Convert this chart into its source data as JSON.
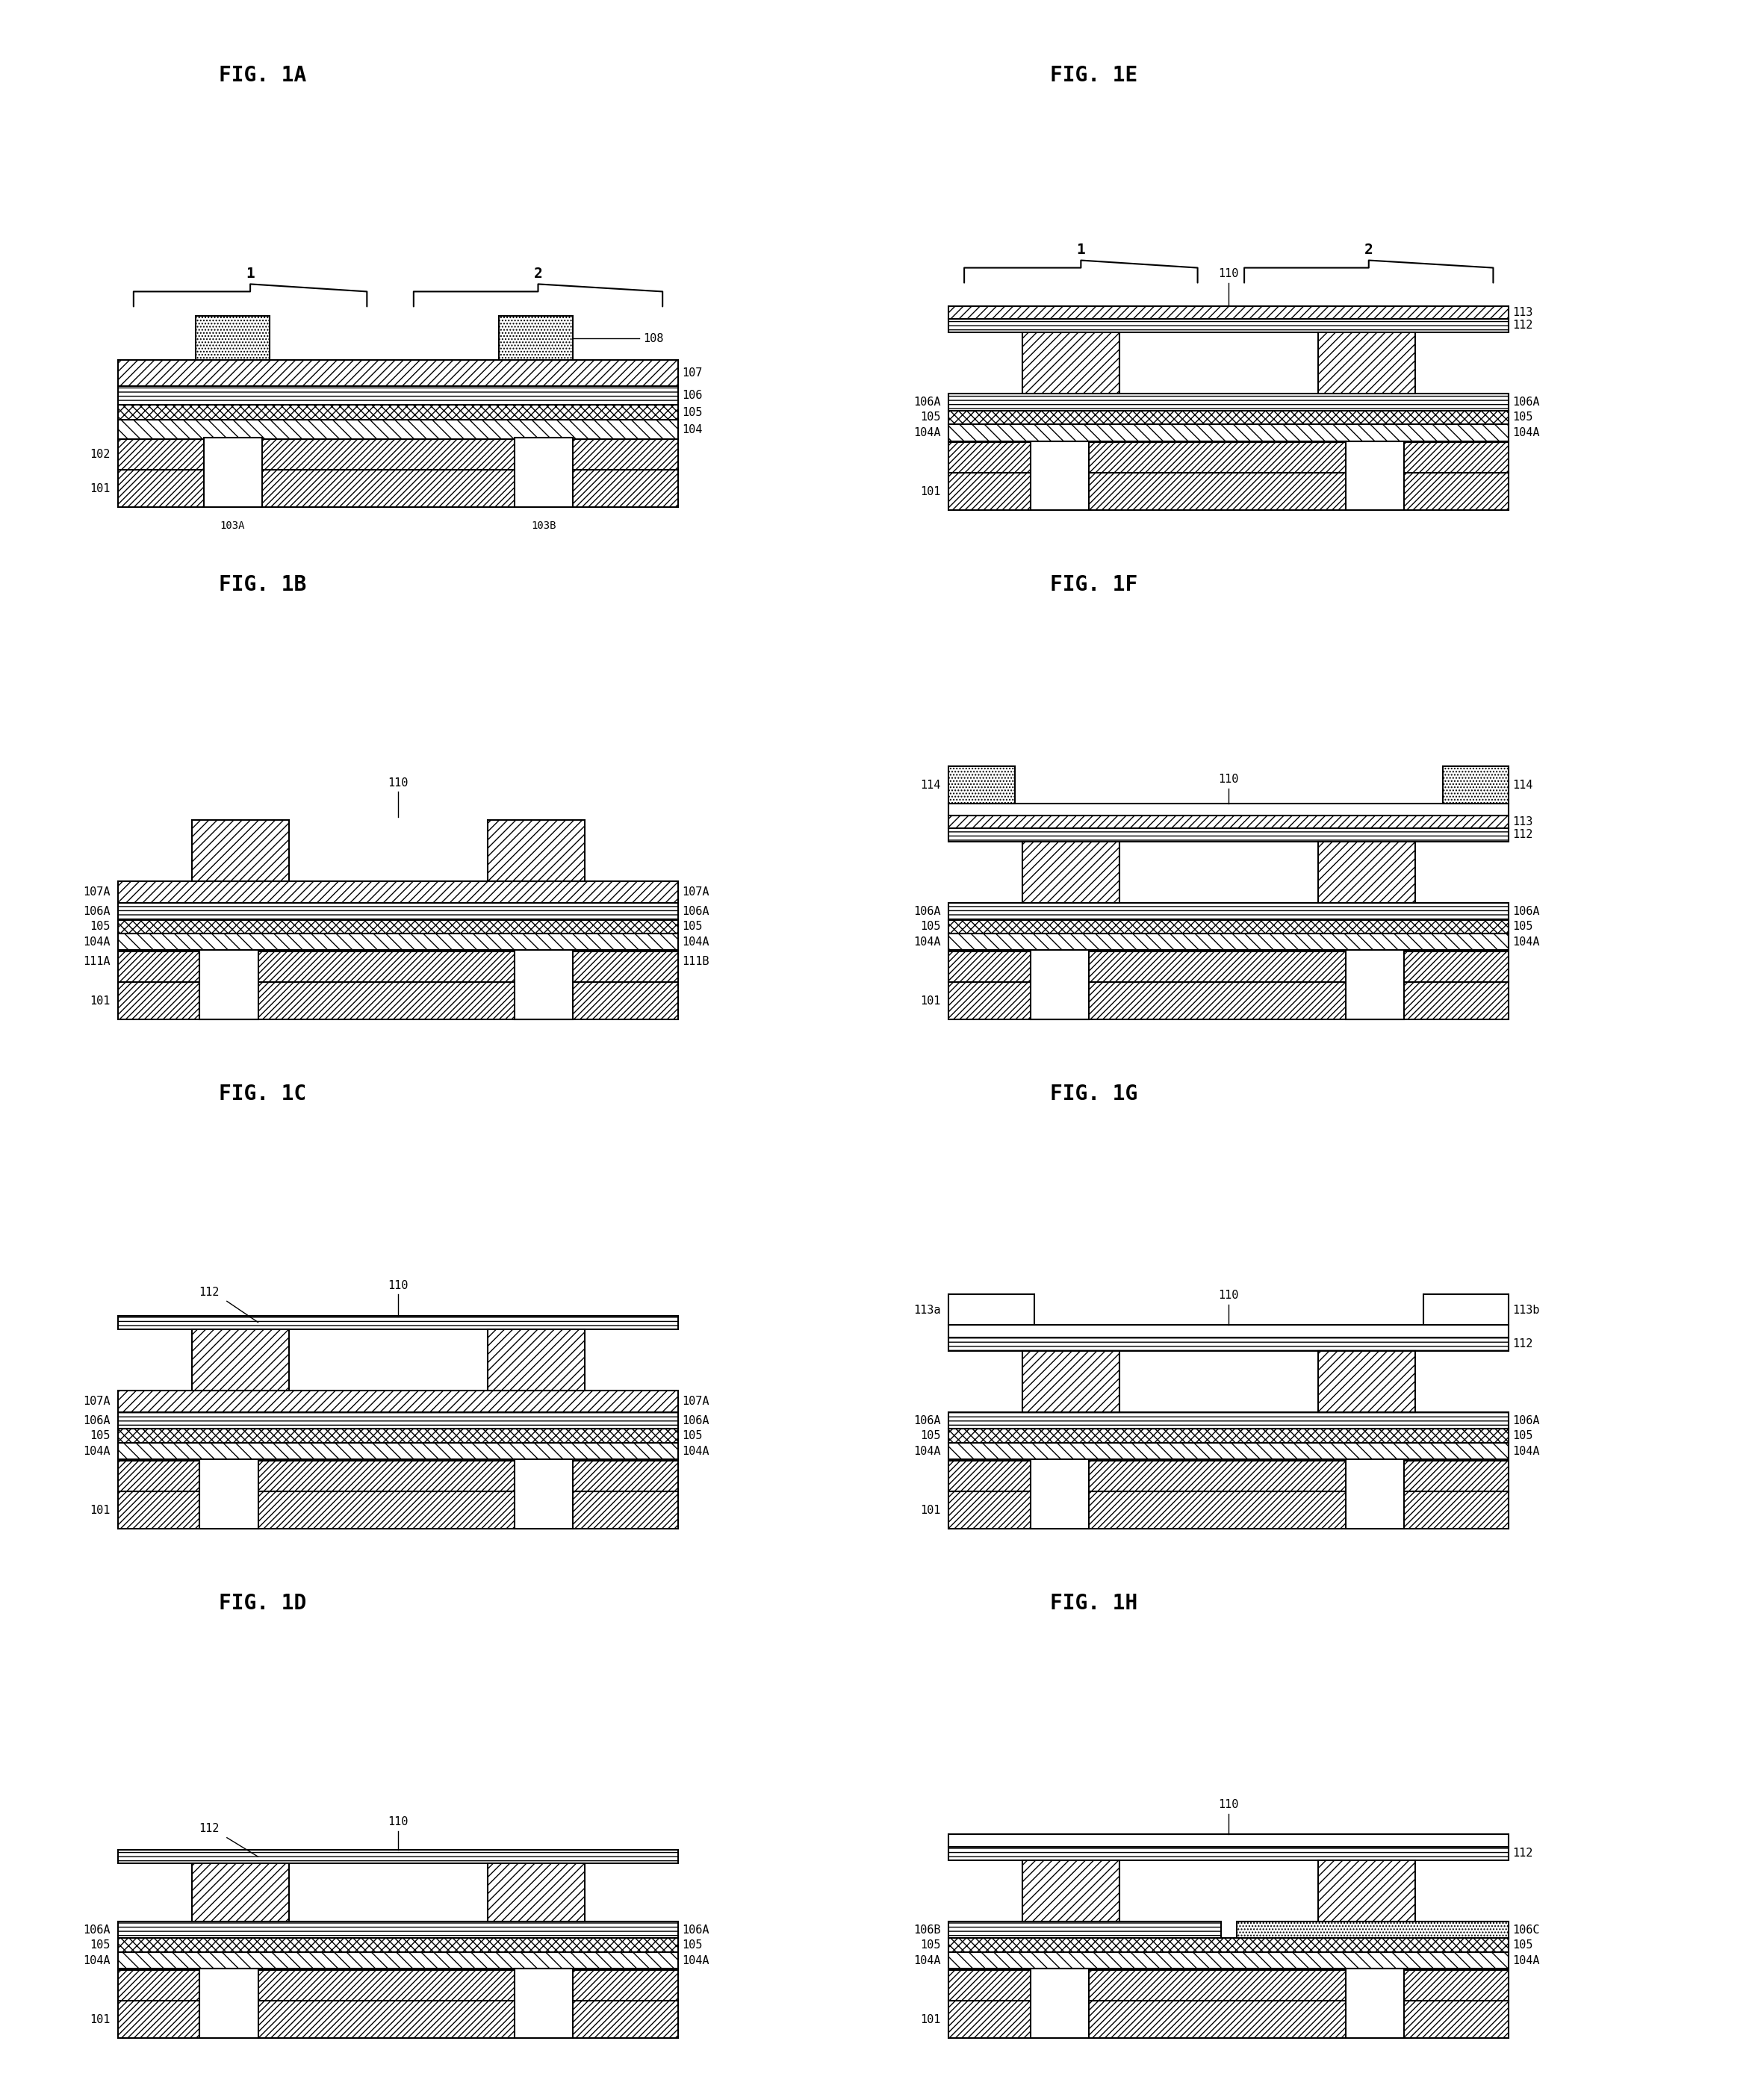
{
  "fig_labels": [
    "FIG. 1A",
    "FIG. 1B",
    "FIG. 1C",
    "FIG. 1D",
    "FIG. 1E",
    "FIG. 1F",
    "FIG. 1G",
    "FIG. 1H"
  ],
  "bg_color": "#ffffff",
  "line_color": "#000000",
  "font_size_title": 20,
  "font_size_label": 11,
  "font_family": "monospace",
  "lw": 1.5
}
